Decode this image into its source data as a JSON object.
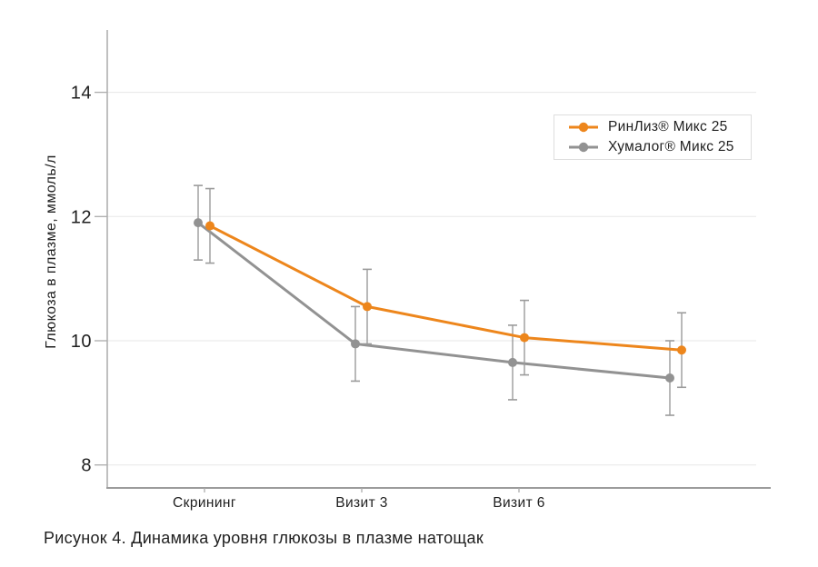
{
  "figure": {
    "caption": "Рисунок 4. Динамика уровня глюкозы в плазме натощак"
  },
  "chart_data": {
    "type": "line",
    "title": "",
    "xlabel": "",
    "ylabel": "Глюкоза в плазме, ммоль/л",
    "categories": [
      "Скрининг",
      "Визит 3",
      "Визит 6",
      ""
    ],
    "yticks": [
      8,
      10,
      12,
      14
    ],
    "ylim": [
      7.6,
      15.0
    ],
    "grid": "horizontal",
    "legend_position": "top-right",
    "error_bars": true,
    "series": [
      {
        "name": "РинЛиз® Микс 25",
        "color": "#ED861C",
        "values": [
          11.85,
          10.55,
          10.05,
          9.85
        ],
        "err_up": [
          0.6,
          0.6,
          0.6,
          0.6
        ],
        "err_down": [
          0.6,
          0.6,
          0.6,
          0.6
        ]
      },
      {
        "name": "Хумалог® Микс 25",
        "color": "#929292",
        "values": [
          11.9,
          9.95,
          9.65,
          9.4
        ],
        "err_up": [
          0.6,
          0.6,
          0.6,
          0.6
        ],
        "err_down": [
          0.6,
          0.6,
          0.6,
          0.6
        ]
      }
    ],
    "colors": {
      "error_bar": "#9B9B9B",
      "gridline": "#E7E7E7",
      "axis": "#ACACAC",
      "x_axis": "#9C9C9C",
      "text": "#1F1F1F"
    }
  }
}
